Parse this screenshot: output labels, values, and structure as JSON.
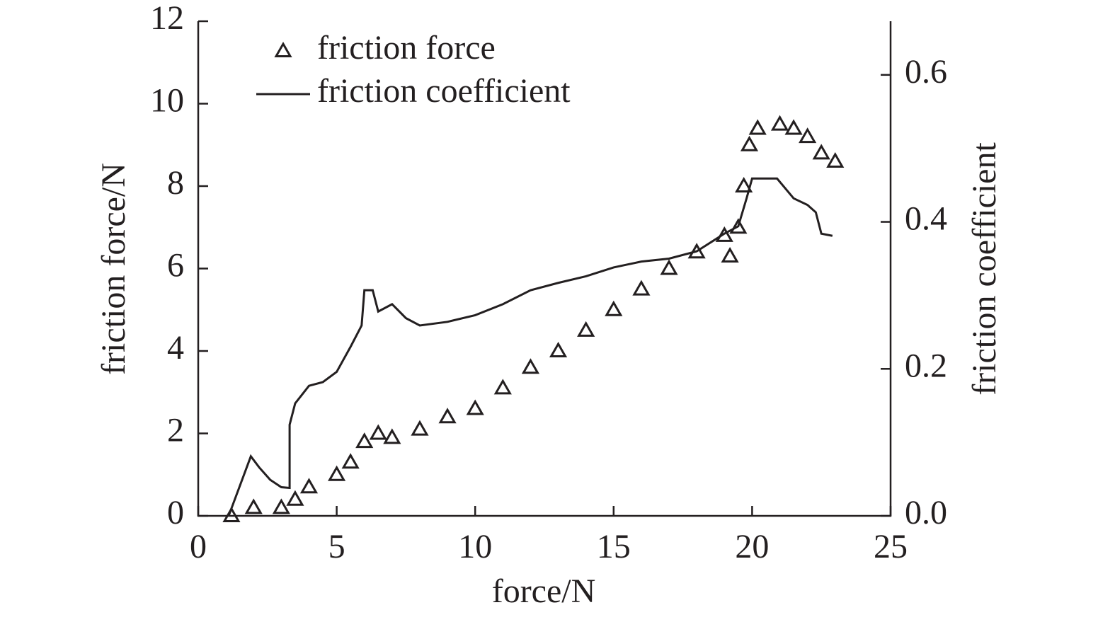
{
  "chart_data": {
    "type": "line",
    "xlabel": "force/N",
    "ylabel": "friction force/N",
    "y2label": "friction coefficient",
    "xlim": [
      0,
      25
    ],
    "xticks": [
      0,
      5,
      10,
      15,
      20,
      25
    ],
    "ylim": [
      0,
      12
    ],
    "yticks": [
      0,
      2,
      4,
      6,
      8,
      10,
      12
    ],
    "y2lim": [
      0,
      0.673
    ],
    "y2ticks": [
      {
        "value": 0,
        "label": "0.0"
      },
      0.2,
      0.4,
      0.6
    ],
    "legend": "upper left",
    "series": [
      {
        "name": "friction force",
        "color": "#231f20",
        "marker": "triangle",
        "x": [
          1.2,
          2,
          3,
          3.5,
          4,
          5,
          5.5,
          6,
          6.5,
          7,
          8,
          9,
          10,
          11,
          12,
          13,
          14,
          15,
          16,
          17,
          18,
          19,
          19.2,
          19.5,
          19.7,
          19.9,
          20.2,
          21,
          21.5,
          22,
          22.5,
          23
        ],
        "values": [
          0,
          0.2,
          0.2,
          0.4,
          0.7,
          1.0,
          1.3,
          1.8,
          2.0,
          1.9,
          2.1,
          2.4,
          2.6,
          3.1,
          3.6,
          4.0,
          4.5,
          5.0,
          5.5,
          6.0,
          6.4,
          6.8,
          6.3,
          7.0,
          8.0,
          9.0,
          9.4,
          9.5,
          9.4,
          9.2,
          8.8,
          8.6
        ]
      },
      {
        "name": "friction coefficient",
        "color": "#231f20",
        "axis": "y2",
        "x": [
          1.1,
          1.9,
          2.2,
          2.6,
          3,
          3.3,
          3.3,
          3.5,
          4,
          4.5,
          5,
          5.5,
          5.9,
          6,
          6.3,
          6.5,
          7,
          7.5,
          8,
          9,
          10,
          11,
          12,
          13,
          14,
          15,
          16,
          17,
          18,
          19,
          19.5,
          19.8,
          20,
          20.9,
          21.5,
          22,
          22.3,
          22.5,
          22.9
        ],
        "values": [
          0,
          0.081,
          0.066,
          0.049,
          0.039,
          0.038,
          0.124,
          0.153,
          0.177,
          0.182,
          0.196,
          0.23,
          0.259,
          0.307,
          0.307,
          0.278,
          0.288,
          0.269,
          0.259,
          0.264,
          0.273,
          0.288,
          0.307,
          0.317,
          0.326,
          0.338,
          0.346,
          0.35,
          0.36,
          0.384,
          0.394,
          0.432,
          0.459,
          0.459,
          0.432,
          0.423,
          0.413,
          0.384,
          0.381
        ]
      }
    ]
  }
}
